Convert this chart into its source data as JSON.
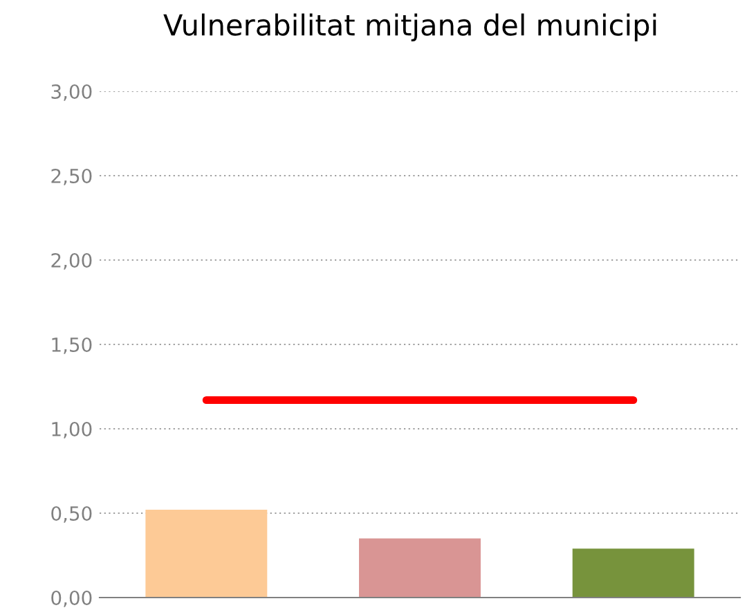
{
  "chart_data": {
    "type": "bar",
    "title": "Vulnerabilitat mitjana del municipi",
    "categories": [
      null,
      null,
      null
    ],
    "series": [
      {
        "colors": [
          "#fdca96",
          "#d99594",
          "#77933c"
        ],
        "values": [
          0.52,
          0.35,
          0.29
        ]
      },
      {
        "type": "line",
        "color": "#ff0000",
        "values": [
          1.17,
          1.17,
          1.17
        ]
      }
    ],
    "ylim": [
      0,
      3
    ],
    "yticks": [
      {
        "value": 0,
        "label": "0,00"
      },
      {
        "value": 0.5,
        "label": "0,50"
      },
      {
        "value": 1,
        "label": "1,00"
      },
      {
        "value": 1.5,
        "label": "1,50"
      },
      {
        "value": 2,
        "label": "2,00"
      },
      {
        "value": 2.5,
        "label": "2,50"
      },
      {
        "value": 3,
        "label": "3,00"
      }
    ],
    "grid": "y",
    "legend": false
  }
}
